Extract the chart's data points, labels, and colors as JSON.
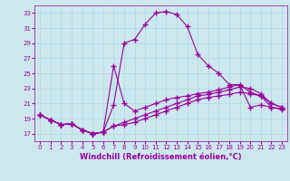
{
  "xlabel": "Windchill (Refroidissement éolien,°C)",
  "background_color": "#cce8ee",
  "line_color": "#990099",
  "grid_color": "#aad8dd",
  "xlim": [
    -0.5,
    23.5
  ],
  "ylim": [
    16.0,
    34.0
  ],
  "xticks": [
    0,
    1,
    2,
    3,
    4,
    5,
    6,
    7,
    8,
    9,
    10,
    11,
    12,
    13,
    14,
    15,
    16,
    17,
    18,
    19,
    20,
    21,
    22,
    23
  ],
  "yticks": [
    17,
    19,
    21,
    23,
    25,
    27,
    29,
    31,
    33
  ],
  "lines": [
    {
      "x": [
        0,
        1,
        2,
        3,
        4,
        5,
        6,
        7,
        8,
        9,
        10,
        11,
        12,
        13,
        14,
        15,
        16,
        17,
        18,
        19,
        20,
        21,
        22,
        23
      ],
      "y": [
        19.5,
        18.8,
        18.2,
        18.3,
        17.5,
        17.0,
        17.2,
        20.8,
        29.0,
        29.5,
        31.5,
        33.0,
        33.2,
        32.8,
        31.2,
        27.5,
        26.0,
        25.0,
        23.5,
        23.5,
        20.5,
        20.8,
        20.5,
        20.3
      ]
    },
    {
      "x": [
        0,
        1,
        2,
        3,
        4,
        5,
        6,
        7,
        8,
        9,
        10,
        11,
        12,
        13,
        14,
        15,
        16,
        17,
        18,
        19,
        20,
        21,
        22,
        23
      ],
      "y": [
        19.5,
        18.8,
        18.2,
        18.3,
        17.5,
        17.0,
        17.2,
        26.0,
        21.0,
        20.0,
        20.5,
        21.0,
        21.5,
        21.8,
        22.0,
        22.3,
        22.5,
        22.8,
        23.2,
        23.5,
        22.5,
        22.0,
        21.0,
        20.5
      ]
    },
    {
      "x": [
        0,
        1,
        2,
        3,
        4,
        5,
        6,
        7,
        8,
        9,
        10,
        11,
        12,
        13,
        14,
        15,
        16,
        17,
        18,
        19,
        20,
        21,
        22,
        23
      ],
      "y": [
        19.5,
        18.8,
        18.2,
        18.3,
        17.5,
        17.0,
        17.2,
        18.0,
        18.5,
        19.0,
        19.5,
        20.0,
        20.5,
        21.0,
        21.5,
        22.0,
        22.2,
        22.5,
        22.8,
        23.2,
        23.0,
        22.3,
        21.0,
        20.5
      ]
    },
    {
      "x": [
        0,
        1,
        2,
        3,
        4,
        5,
        6,
        7,
        8,
        9,
        10,
        11,
        12,
        13,
        14,
        15,
        16,
        17,
        18,
        19,
        20,
        21,
        22,
        23
      ],
      "y": [
        19.5,
        18.8,
        18.2,
        18.3,
        17.5,
        17.0,
        17.2,
        18.0,
        18.2,
        18.5,
        19.0,
        19.5,
        20.0,
        20.5,
        21.0,
        21.5,
        21.8,
        22.0,
        22.2,
        22.5,
        22.3,
        22.0,
        20.5,
        20.2
      ]
    }
  ],
  "marker": "+",
  "markersize": 4,
  "markeredgewidth": 1.0,
  "linewidth": 0.8,
  "axis_fontsize": 6,
  "tick_fontsize": 5
}
